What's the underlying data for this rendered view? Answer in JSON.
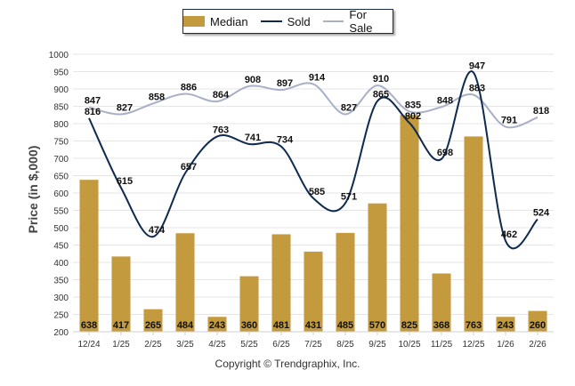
{
  "chart_data": {
    "type": "bar",
    "title": "",
    "xlabel": "",
    "ylabel": "Price (in $,000)",
    "ylim": [
      200,
      1000
    ],
    "yticks": [
      200,
      250,
      300,
      350,
      400,
      450,
      500,
      550,
      600,
      650,
      700,
      750,
      800,
      850,
      900,
      950,
      1000
    ],
    "grid": true,
    "legend_position": "top-center",
    "categories": [
      "12/24",
      "1/25",
      "2/25",
      "3/25",
      "4/25",
      "5/25",
      "6/25",
      "7/25",
      "8/25",
      "9/25",
      "10/25",
      "11/25",
      "12/25",
      "1/26",
      "2/26"
    ],
    "series": [
      {
        "name": "Median",
        "type": "bar",
        "color": "#c49a3f",
        "values": [
          638,
          417,
          265,
          484,
          243,
          360,
          481,
          431,
          485,
          570,
          825,
          368,
          763,
          243,
          260
        ]
      },
      {
        "name": "Sold",
        "type": "line",
        "color": "#0f2a4f",
        "values": [
          816,
          615,
          474,
          657,
          763,
          741,
          734,
          585,
          571,
          865,
          802,
          698,
          947,
          462,
          524
        ]
      },
      {
        "name": "For Sale",
        "type": "line",
        "color": "#a8b0c8",
        "values": [
          847,
          827,
          858,
          886,
          864,
          908,
          897,
          914,
          827,
          910,
          835,
          848,
          883,
          791,
          818
        ]
      }
    ]
  },
  "legend": {
    "items": [
      {
        "label": "Median",
        "color": "#c49a3f"
      },
      {
        "label": "Sold",
        "color": "#0f2a4f"
      },
      {
        "label": "For Sale",
        "color": "#a8b0c8"
      }
    ]
  },
  "footer": {
    "copyright": "Copyright © Trendgraphix, Inc."
  }
}
